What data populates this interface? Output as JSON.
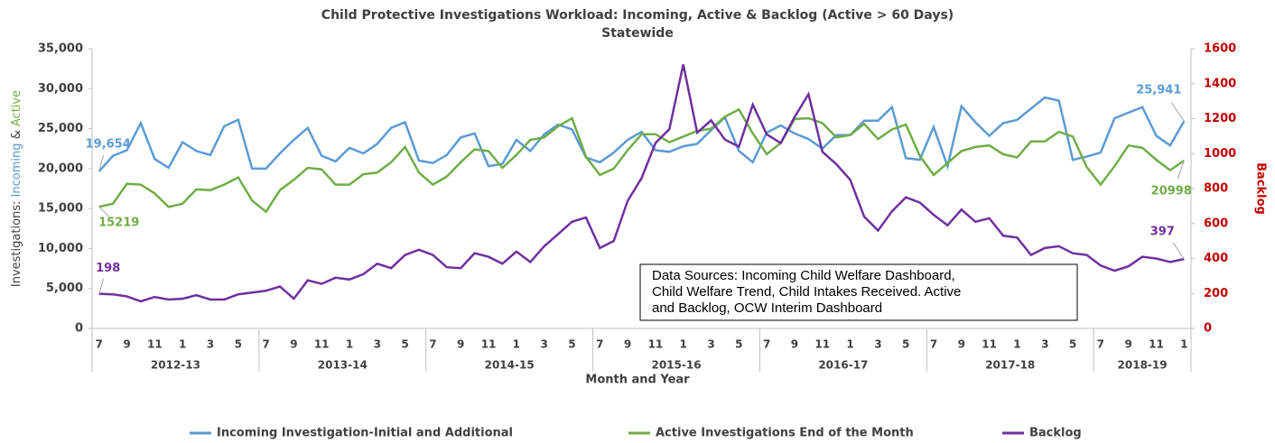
{
  "chart_data": {
    "type": "line",
    "title": "Child Protective Investigations Workload: Incoming, Active & Backlog (Active > 60 Days)",
    "subtitle": "Statewide",
    "xlabel": "Month and Year",
    "ylabel_parts": [
      "Investigations: ",
      "Incoming",
      " & ",
      "Active"
    ],
    "y2label": "Backlog",
    "categories": [
      "7",
      null,
      "9",
      null,
      "11",
      null,
      "1",
      null,
      "3",
      null,
      "5",
      null,
      "7",
      null,
      "9",
      null,
      "11",
      null,
      "1",
      null,
      "3",
      null,
      "5",
      null,
      "7",
      null,
      "9",
      null,
      "11",
      null,
      "1",
      null,
      "3",
      null,
      "5",
      null,
      "7",
      null,
      "9",
      null,
      "11",
      null,
      "1",
      null,
      "3",
      null,
      "5",
      null,
      "7",
      null,
      "9",
      null,
      "11",
      null,
      "1",
      null,
      "3",
      null,
      "5",
      null,
      "7",
      null,
      "9",
      null,
      "11",
      null,
      "1",
      null,
      "3",
      null,
      "5",
      null,
      "7",
      null,
      "9",
      null,
      "11",
      null,
      "1"
    ],
    "year_groups": [
      "2012-13",
      "2013-14",
      "2014-15",
      "2015-16",
      "2016-17",
      "2017-18",
      "2018-19"
    ],
    "ylim": [
      0,
      35000
    ],
    "yticks": [
      0,
      {
        "value": 5000,
        "label": "5,000"
      },
      {
        "value": 10000,
        "label": "10,000"
      },
      {
        "value": 15000,
        "label": "15,000"
      },
      {
        "value": 20000,
        "label": "20,000"
      },
      {
        "value": 25000,
        "label": "25,000"
      },
      {
        "value": 30000,
        "label": "30,000"
      },
      {
        "value": 35000,
        "label": "35,000"
      }
    ],
    "y2lim": [
      0,
      1600
    ],
    "y2ticks": [
      0,
      200,
      400,
      600,
      800,
      1000,
      1200,
      1400,
      1600
    ],
    "grid": false,
    "legend": "bottom",
    "series": [
      {
        "name": "Incoming Investigation-Initial and Additional",
        "color": "#5b9bd5",
        "values": [
          19654,
          21600,
          22300,
          25700,
          21200,
          20100,
          23300,
          22200,
          21700,
          25300,
          26100,
          20000,
          20000,
          21900,
          23600,
          25100,
          21600,
          20900,
          22600,
          21900,
          23100,
          25100,
          25800,
          21000,
          20700,
          21700,
          23900,
          24400,
          20300,
          20600,
          23600,
          22200,
          24300,
          25500,
          24900,
          21400,
          20800,
          22000,
          23600,
          24600,
          22300,
          22100,
          22800,
          23100,
          24800,
          26400,
          22200,
          20800,
          24500,
          25400,
          24400,
          23700,
          22500,
          24200,
          24200,
          26000,
          26000,
          27700,
          21300,
          21100,
          25200,
          20300,
          27800,
          25800,
          24100,
          25700,
          26100,
          27500,
          28900,
          28500,
          21100,
          21500,
          22000,
          26300,
          27000,
          27700,
          24100,
          22900,
          25941
        ],
        "value_labels": [
          "19,654",
          null,
          null,
          null,
          null,
          null,
          null,
          null,
          null,
          null,
          null,
          null,
          null,
          null,
          null,
          null,
          null,
          null,
          null,
          null,
          null,
          null,
          null,
          null,
          null,
          null,
          null,
          null,
          null,
          null,
          null,
          null,
          null,
          null,
          null,
          null,
          null,
          null,
          null,
          null,
          null,
          null,
          null,
          null,
          null,
          null,
          null,
          null,
          null,
          null,
          null,
          null,
          null,
          null,
          null,
          null,
          null,
          null,
          null,
          null,
          null,
          null,
          null,
          null,
          null,
          null,
          null,
          null,
          null,
          null,
          null,
          null,
          null,
          null,
          null,
          null,
          null,
          null,
          "25,941"
        ]
      },
      {
        "name": "Active Investigations End of the Month",
        "color": "#70ad47",
        "values": [
          15219,
          15600,
          18100,
          18000,
          16900,
          15200,
          15600,
          17400,
          17300,
          18000,
          18900,
          16000,
          14600,
          17300,
          18600,
          20100,
          19900,
          18000,
          18000,
          19300,
          19500,
          20800,
          22700,
          19500,
          18000,
          19000,
          20800,
          22400,
          22200,
          20100,
          21700,
          23600,
          23900,
          25300,
          26300,
          21500,
          19200,
          20000,
          22300,
          24300,
          24300,
          23300,
          24000,
          24700,
          25000,
          26500,
          27400,
          24400,
          21800,
          23200,
          26200,
          26300,
          25700,
          23900,
          24200,
          25600,
          23700,
          24900,
          25500,
          21600,
          19200,
          20700,
          22200,
          22700,
          22900,
          21800,
          21400,
          23400,
          23400,
          24600,
          24000,
          20200,
          18000,
          20300,
          22900,
          22600,
          21100,
          19800,
          20998
        ],
        "value_labels": [
          "15219",
          null,
          null,
          null,
          null,
          null,
          null,
          null,
          null,
          null,
          null,
          null,
          null,
          null,
          null,
          null,
          null,
          null,
          null,
          null,
          null,
          null,
          null,
          null,
          null,
          null,
          null,
          null,
          null,
          null,
          null,
          null,
          null,
          null,
          null,
          null,
          null,
          null,
          null,
          null,
          null,
          null,
          null,
          null,
          null,
          null,
          null,
          null,
          null,
          null,
          null,
          null,
          null,
          null,
          null,
          null,
          null,
          null,
          null,
          null,
          null,
          null,
          null,
          null,
          null,
          null,
          null,
          null,
          null,
          null,
          null,
          null,
          null,
          null,
          null,
          null,
          null,
          null,
          "20998"
        ]
      },
      {
        "name": "Backlog",
        "color": "#7030a0",
        "axis": "y2",
        "values": [
          198,
          195,
          183,
          155,
          180,
          165,
          170,
          190,
          165,
          165,
          195,
          205,
          215,
          240,
          170,
          275,
          255,
          290,
          280,
          310,
          370,
          345,
          420,
          450,
          420,
          350,
          345,
          430,
          410,
          370,
          440,
          380,
          470,
          540,
          610,
          635,
          460,
          500,
          730,
          860,
          1060,
          1140,
          1510,
          1120,
          1190,
          1080,
          1040,
          1280,
          1110,
          1060,
          1210,
          1340,
          1010,
          940,
          850,
          640,
          560,
          670,
          750,
          720,
          650,
          590,
          680,
          610,
          630,
          530,
          520,
          420,
          460,
          470,
          430,
          420,
          360,
          330,
          355,
          410,
          400,
          380,
          397
        ],
        "value_labels": [
          "198",
          null,
          null,
          null,
          null,
          null,
          null,
          null,
          null,
          null,
          null,
          null,
          null,
          null,
          null,
          null,
          null,
          null,
          null,
          null,
          null,
          null,
          null,
          null,
          null,
          null,
          null,
          null,
          null,
          null,
          null,
          null,
          null,
          null,
          null,
          null,
          null,
          null,
          null,
          null,
          null,
          null,
          null,
          null,
          null,
          null,
          null,
          null,
          null,
          null,
          null,
          null,
          null,
          null,
          null,
          null,
          null,
          null,
          null,
          null,
          null,
          null,
          null,
          null,
          null,
          null,
          null,
          null,
          null,
          null,
          null,
          null,
          null,
          null,
          null,
          null,
          null,
          null,
          "397"
        ]
      }
    ],
    "annotation": [
      "Data Sources: Incoming Child Welfare Dashboard,",
      "Child Welfare Trend, Child Intakes Received.  Active",
      "and Backlog, OCW Interim Dashboard"
    ]
  }
}
